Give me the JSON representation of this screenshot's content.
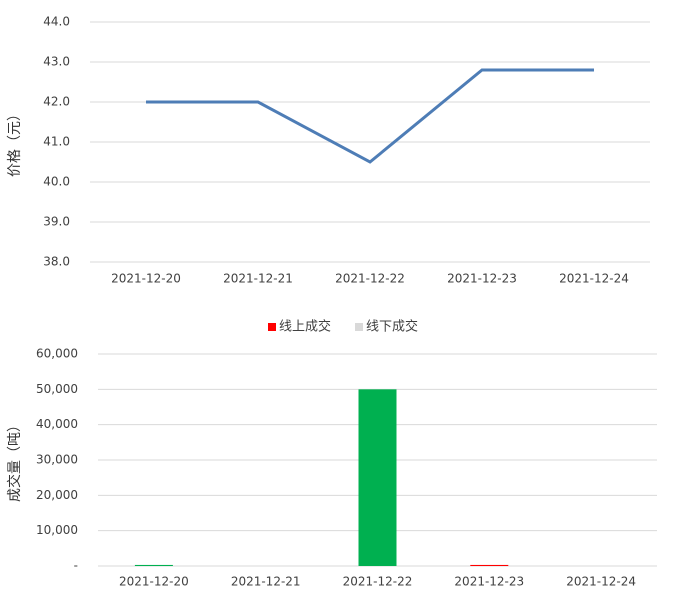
{
  "chart_data": [
    {
      "type": "line",
      "y_label": "价格（元）",
      "categories": [
        "2021-12-20",
        "2021-12-21",
        "2021-12-22",
        "2021-12-23",
        "2021-12-24"
      ],
      "series": [
        {
          "color": "#4e7db6",
          "values": [
            42.0,
            42.0,
            40.5,
            42.8,
            42.8
          ]
        }
      ],
      "ylim": [
        38.0,
        44.0
      ],
      "yticks": [
        {
          "value": 38,
          "label": "38.0"
        },
        {
          "value": 39,
          "label": "39.0"
        },
        {
          "value": 40,
          "label": "40.0"
        },
        {
          "value": 41,
          "label": "41.0"
        },
        {
          "value": 42,
          "label": "42.0"
        },
        {
          "value": 43,
          "label": "43.0"
        },
        {
          "value": 44,
          "label": "44.0"
        }
      ],
      "grid": true
    },
    {
      "type": "bar",
      "y_label": "成交量（吨）",
      "categories": [
        "2021-12-20",
        "2021-12-21",
        "2021-12-22",
        "2021-12-23",
        "2021-12-24"
      ],
      "series": [
        {
          "name": "线上成交",
          "color": "#ff0000",
          "values": [
            0,
            0,
            0,
            300,
            0
          ]
        },
        {
          "name": "线下成交",
          "color": "#d9d9d9",
          "point_colors": [
            "#00b050",
            "#00b050",
            "#00b050",
            "#00b050",
            "#00b050"
          ],
          "values": [
            300,
            0,
            50000,
            0,
            0
          ]
        }
      ],
      "ylim": [
        0,
        60000
      ],
      "yticks": [
        {
          "value": 0,
          "label": "-"
        },
        {
          "value": 10000,
          "label": "10,000"
        },
        {
          "value": 20000,
          "label": "20,000"
        },
        {
          "value": 30000,
          "label": "30,000"
        },
        {
          "value": 40000,
          "label": "40,000"
        },
        {
          "value": 50000,
          "label": "50,000"
        },
        {
          "value": 60000,
          "label": "60,000"
        }
      ],
      "grid": true,
      "legend": "top"
    }
  ]
}
